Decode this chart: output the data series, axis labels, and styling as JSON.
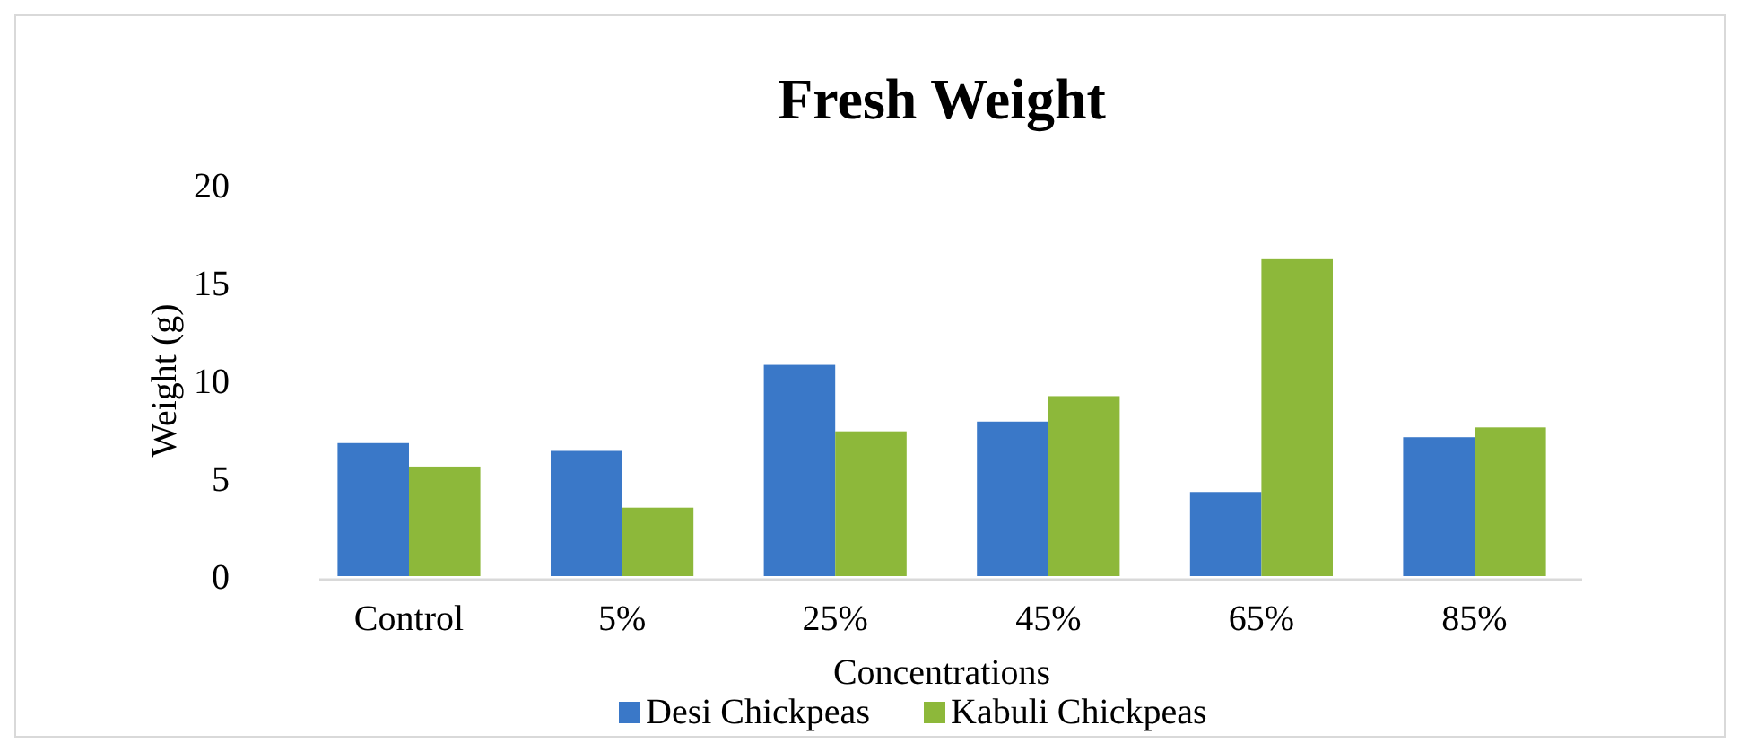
{
  "chart_data": {
    "type": "bar",
    "title": "Fresh Weight",
    "xlabel": "Concentrations",
    "ylabel": "Weight (g)",
    "categories": [
      "Control",
      "5%",
      "25%",
      "45%",
      "65%",
      "85%"
    ],
    "series": [
      {
        "name": "Desi Chickpeas",
        "color": "#3a78c8",
        "values": [
          6.8,
          6.4,
          10.8,
          7.9,
          4.3,
          7.1
        ]
      },
      {
        "name": "Kabuli Chickpeas",
        "color": "#8db83a",
        "values": [
          5.6,
          3.5,
          7.4,
          9.2,
          16.2,
          7.6
        ]
      }
    ],
    "ylim": [
      0,
      20
    ],
    "yticks": [
      0,
      5,
      10,
      15,
      20
    ],
    "grid": false,
    "legend": "bottom"
  }
}
